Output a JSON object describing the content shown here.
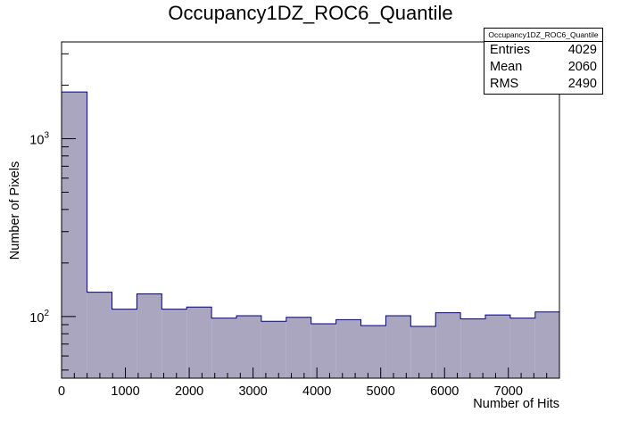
{
  "title": "Occupancy1DZ_ROC6_Quantile",
  "stats_box": {
    "name": "Occupancy1DZ_ROC6_Quantile",
    "rows": [
      {
        "label": "Entries",
        "value": "4029"
      },
      {
        "label": "Mean",
        "value": "2060"
      },
      {
        "label": "RMS",
        "value": "2490"
      }
    ]
  },
  "colors": {
    "fill": "#aaa6c0",
    "line": "#00008b",
    "axis": "#000000"
  },
  "chart_data": {
    "type": "histogram",
    "title": "Occupancy1DZ_ROC6_Quantile",
    "xlabel": "Number of Hits",
    "ylabel": "Number of Pixels",
    "xlim": [
      0,
      7800
    ],
    "ylim": [
      45,
      3500
    ],
    "yscale": "log",
    "grid": false,
    "x_ticks": [
      0,
      1000,
      2000,
      3000,
      4000,
      5000,
      6000,
      7000
    ],
    "y_ticks": [
      {
        "value": 100,
        "base": "10",
        "exp": "2"
      },
      {
        "value": 1000,
        "base": "10",
        "exp": "3"
      }
    ],
    "bin_edges": [
      0,
      400,
      790,
      1180,
      1570,
      1960,
      2350,
      2740,
      3130,
      3520,
      3910,
      4300,
      4690,
      5080,
      5470,
      5860,
      6250,
      6640,
      7030,
      7420,
      7800
    ],
    "values": [
      1830,
      137,
      110,
      134,
      110,
      113,
      98,
      101,
      94,
      99,
      91,
      96,
      89,
      101,
      88,
      105,
      97,
      102,
      98,
      106
    ]
  }
}
